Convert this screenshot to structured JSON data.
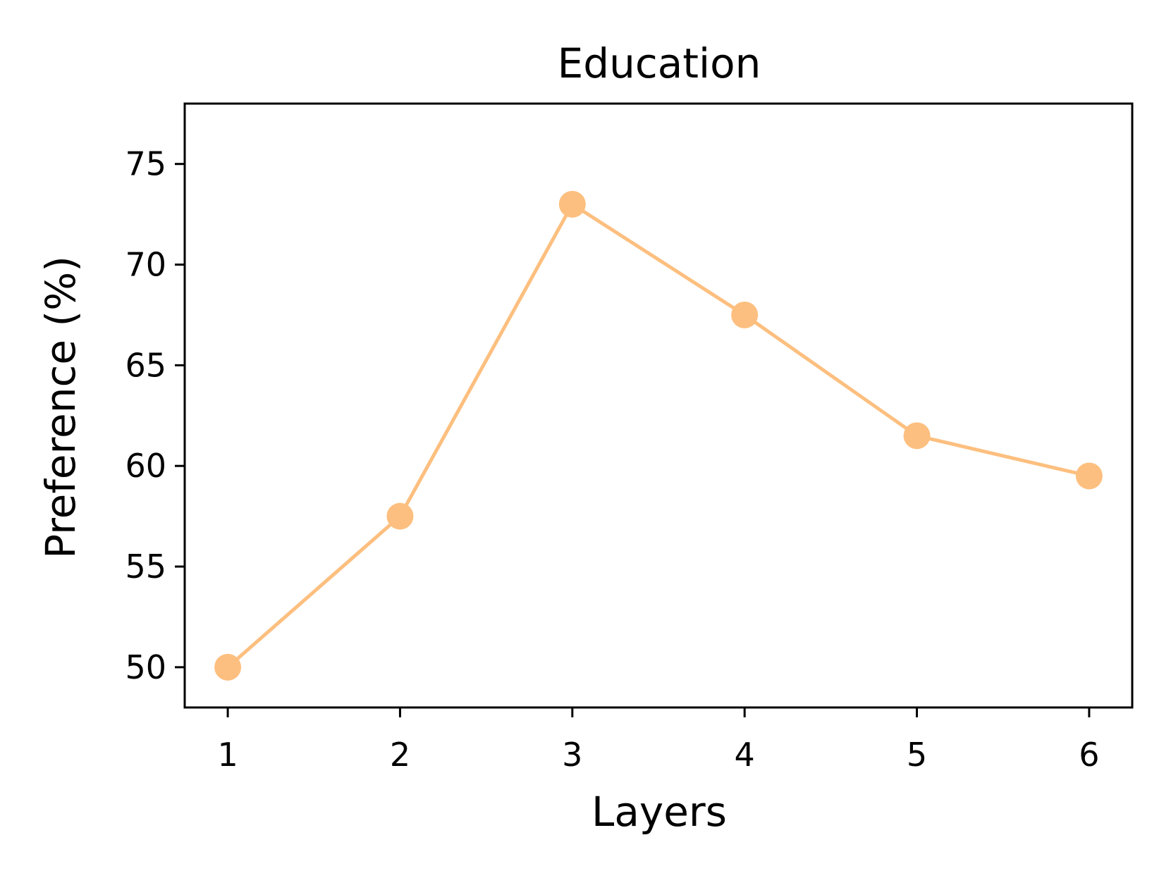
{
  "chart_data": {
    "type": "line",
    "title": "Education",
    "xlabel": "Layers",
    "ylabel": "Preference (%)",
    "x": [
      1,
      2,
      3,
      4,
      5,
      6
    ],
    "series": [
      {
        "values": [
          50,
          57.5,
          73,
          67.5,
          61.5,
          59.5
        ],
        "color": "#fdbf7f",
        "marker": "circle"
      }
    ],
    "xticks": [
      1,
      2,
      3,
      4,
      5,
      6
    ],
    "xtick_labels": [
      "1",
      "2",
      "3",
      "4",
      "5",
      "6"
    ],
    "yticks": [
      50,
      55,
      60,
      65,
      70,
      75
    ],
    "ytick_labels": [
      "50",
      "55",
      "60",
      "65",
      "70",
      "75"
    ],
    "xlim": [
      0.75,
      6.25
    ],
    "ylim": [
      48,
      78
    ],
    "grid": false,
    "legend": "none"
  }
}
